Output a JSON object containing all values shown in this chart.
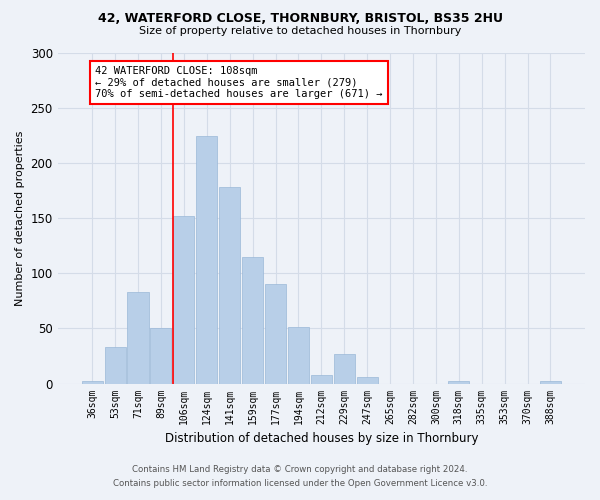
{
  "title1": "42, WATERFORD CLOSE, THORNBURY, BRISTOL, BS35 2HU",
  "title2": "Size of property relative to detached houses in Thornbury",
  "xlabel": "Distribution of detached houses by size in Thornbury",
  "ylabel": "Number of detached properties",
  "bar_labels": [
    "36sqm",
    "53sqm",
    "71sqm",
    "89sqm",
    "106sqm",
    "124sqm",
    "141sqm",
    "159sqm",
    "177sqm",
    "194sqm",
    "212sqm",
    "229sqm",
    "247sqm",
    "265sqm",
    "282sqm",
    "300sqm",
    "318sqm",
    "335sqm",
    "353sqm",
    "370sqm",
    "388sqm"
  ],
  "bar_values": [
    2,
    33,
    83,
    50,
    152,
    224,
    178,
    115,
    90,
    51,
    8,
    27,
    6,
    0,
    0,
    0,
    2,
    0,
    0,
    0,
    2
  ],
  "bar_color": "#b8cfe8",
  "bar_edge_color": "#9ab8d8",
  "grid_color": "#d4dce8",
  "background_color": "#eef2f8",
  "marker_line_color": "red",
  "annotation_line1": "42 WATERFORD CLOSE: 108sqm",
  "annotation_line2": "← 29% of detached houses are smaller (279)",
  "annotation_line3": "70% of semi-detached houses are larger (671) →",
  "annotation_box_color": "white",
  "annotation_box_edge_color": "red",
  "footer1": "Contains HM Land Registry data © Crown copyright and database right 2024.",
  "footer2": "Contains public sector information licensed under the Open Government Licence v3.0.",
  "ylim_max": 300,
  "yticks": [
    0,
    50,
    100,
    150,
    200,
    250,
    300
  ]
}
